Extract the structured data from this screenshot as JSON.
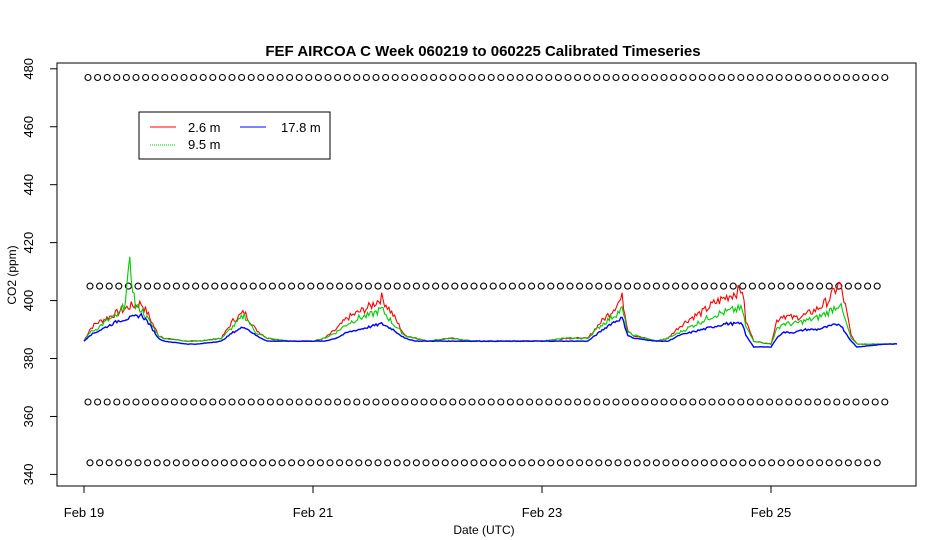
{
  "chart_data": {
    "type": "line",
    "title": "FEF AIRCOA C  Week 060219 to 060225  Calibrated Timeseries",
    "xlabel": "Date (UTC)",
    "ylabel": "CO2 (ppm)",
    "x_range_days_feb": [
      18.9,
      26.2
    ],
    "ylim": [
      336,
      482
    ],
    "x_ticks": [
      {
        "label": "Feb 19",
        "day": 19
      },
      {
        "label": "Feb 21",
        "day": 21
      },
      {
        "label": "Feb 23",
        "day": 23
      },
      {
        "label": "Feb 25",
        "day": 25
      }
    ],
    "y_ticks": [
      340,
      360,
      380,
      400,
      420,
      440,
      460,
      480
    ],
    "grid": false,
    "legend": {
      "position": "top-left"
    },
    "series": [
      {
        "name": "2.6 m",
        "color": "#ff0000",
        "points": [
          [
            19.0,
            386
          ],
          [
            19.05,
            390
          ],
          [
            19.1,
            392
          ],
          [
            19.2,
            394
          ],
          [
            19.3,
            396
          ],
          [
            19.4,
            398
          ],
          [
            19.5,
            399
          ],
          [
            19.55,
            396
          ],
          [
            19.6,
            392
          ],
          [
            19.65,
            388
          ],
          [
            19.7,
            387
          ],
          [
            19.9,
            386
          ],
          [
            20.0,
            386
          ],
          [
            20.2,
            387
          ],
          [
            20.3,
            393
          ],
          [
            20.4,
            396
          ],
          [
            20.5,
            390
          ],
          [
            20.6,
            387
          ],
          [
            20.8,
            386
          ],
          [
            21.0,
            386
          ],
          [
            21.1,
            387
          ],
          [
            21.2,
            390
          ],
          [
            21.3,
            394
          ],
          [
            21.4,
            396
          ],
          [
            21.5,
            398
          ],
          [
            21.6,
            401
          ],
          [
            21.7,
            395
          ],
          [
            21.8,
            388
          ],
          [
            21.9,
            387
          ],
          [
            22.0,
            386
          ],
          [
            22.2,
            387
          ],
          [
            22.4,
            386
          ],
          [
            22.6,
            386
          ],
          [
            22.8,
            386
          ],
          [
            23.0,
            386
          ],
          [
            23.2,
            387
          ],
          [
            23.4,
            387
          ],
          [
            23.5,
            392
          ],
          [
            23.6,
            396
          ],
          [
            23.7,
            401
          ],
          [
            23.75,
            390
          ],
          [
            23.8,
            388
          ],
          [
            24.0,
            386
          ],
          [
            24.1,
            387
          ],
          [
            24.2,
            391
          ],
          [
            24.3,
            394
          ],
          [
            24.4,
            396
          ],
          [
            24.5,
            399
          ],
          [
            24.6,
            401
          ],
          [
            24.7,
            403
          ],
          [
            24.75,
            404
          ],
          [
            24.78,
            393
          ],
          [
            24.85,
            386
          ],
          [
            25.0,
            385
          ],
          [
            25.05,
            393
          ],
          [
            25.1,
            395
          ],
          [
            25.2,
            394
          ],
          [
            25.3,
            395
          ],
          [
            25.4,
            397
          ],
          [
            25.5,
            400
          ],
          [
            25.6,
            406
          ],
          [
            25.65,
            398
          ],
          [
            25.7,
            388
          ],
          [
            25.75,
            385
          ],
          [
            26.0,
            385
          ],
          [
            26.1,
            385
          ]
        ]
      },
      {
        "name": "9.5 m",
        "color": "#00cc00",
        "points": [
          [
            19.0,
            386
          ],
          [
            19.05,
            389
          ],
          [
            19.1,
            390
          ],
          [
            19.2,
            393
          ],
          [
            19.3,
            395
          ],
          [
            19.35,
            398
          ],
          [
            19.4,
            412
          ],
          [
            19.45,
            398
          ],
          [
            19.5,
            397
          ],
          [
            19.55,
            394
          ],
          [
            19.6,
            391
          ],
          [
            19.65,
            388
          ],
          [
            19.7,
            387
          ],
          [
            19.9,
            386
          ],
          [
            20.0,
            386
          ],
          [
            20.2,
            387
          ],
          [
            20.3,
            391
          ],
          [
            20.4,
            395
          ],
          [
            20.5,
            389
          ],
          [
            20.6,
            387
          ],
          [
            20.8,
            386
          ],
          [
            21.0,
            386
          ],
          [
            21.1,
            387
          ],
          [
            21.2,
            389
          ],
          [
            21.3,
            392
          ],
          [
            21.4,
            394
          ],
          [
            21.5,
            395
          ],
          [
            21.6,
            397
          ],
          [
            21.7,
            392
          ],
          [
            21.8,
            388
          ],
          [
            21.9,
            387
          ],
          [
            22.0,
            386
          ],
          [
            22.2,
            387
          ],
          [
            22.4,
            386
          ],
          [
            22.6,
            386
          ],
          [
            22.8,
            386
          ],
          [
            23.0,
            386
          ],
          [
            23.2,
            387
          ],
          [
            23.4,
            387
          ],
          [
            23.5,
            391
          ],
          [
            23.6,
            394
          ],
          [
            23.7,
            397
          ],
          [
            23.75,
            389
          ],
          [
            23.8,
            388
          ],
          [
            24.0,
            386
          ],
          [
            24.1,
            387
          ],
          [
            24.2,
            389
          ],
          [
            24.3,
            391
          ],
          [
            24.4,
            393
          ],
          [
            24.5,
            395
          ],
          [
            24.6,
            396
          ],
          [
            24.7,
            397
          ],
          [
            24.75,
            397
          ],
          [
            24.78,
            391
          ],
          [
            24.85,
            386
          ],
          [
            25.0,
            385
          ],
          [
            25.05,
            390
          ],
          [
            25.1,
            392
          ],
          [
            25.2,
            392
          ],
          [
            25.3,
            393
          ],
          [
            25.4,
            394
          ],
          [
            25.5,
            396
          ],
          [
            25.6,
            399
          ],
          [
            25.65,
            393
          ],
          [
            25.7,
            387
          ],
          [
            25.75,
            385
          ],
          [
            26.0,
            385
          ],
          [
            26.1,
            385
          ]
        ]
      },
      {
        "name": "17.8 m",
        "color": "#0000ff",
        "points": [
          [
            19.0,
            386
          ],
          [
            19.05,
            388
          ],
          [
            19.1,
            389
          ],
          [
            19.2,
            391
          ],
          [
            19.3,
            393
          ],
          [
            19.4,
            394
          ],
          [
            19.5,
            395
          ],
          [
            19.55,
            393
          ],
          [
            19.6,
            390
          ],
          [
            19.65,
            387
          ],
          [
            19.7,
            386
          ],
          [
            19.9,
            385
          ],
          [
            20.0,
            385
          ],
          [
            20.2,
            386
          ],
          [
            20.3,
            389
          ],
          [
            20.4,
            391
          ],
          [
            20.5,
            388
          ],
          [
            20.6,
            386
          ],
          [
            20.8,
            386
          ],
          [
            21.0,
            386
          ],
          [
            21.1,
            386
          ],
          [
            21.2,
            387
          ],
          [
            21.3,
            389
          ],
          [
            21.4,
            390
          ],
          [
            21.5,
            391
          ],
          [
            21.6,
            392
          ],
          [
            21.7,
            390
          ],
          [
            21.8,
            387
          ],
          [
            21.9,
            386
          ],
          [
            22.0,
            386
          ],
          [
            22.2,
            386
          ],
          [
            22.4,
            386
          ],
          [
            22.6,
            386
          ],
          [
            22.8,
            386
          ],
          [
            23.0,
            386
          ],
          [
            23.2,
            386
          ],
          [
            23.4,
            386
          ],
          [
            23.5,
            389
          ],
          [
            23.6,
            392
          ],
          [
            23.7,
            394
          ],
          [
            23.75,
            388
          ],
          [
            23.8,
            387
          ],
          [
            24.0,
            386
          ],
          [
            24.1,
            386
          ],
          [
            24.2,
            388
          ],
          [
            24.3,
            389
          ],
          [
            24.4,
            390
          ],
          [
            24.5,
            391
          ],
          [
            24.6,
            392
          ],
          [
            24.7,
            392
          ],
          [
            24.75,
            392
          ],
          [
            24.78,
            388
          ],
          [
            24.85,
            384
          ],
          [
            25.0,
            384
          ],
          [
            25.05,
            387
          ],
          [
            25.1,
            389
          ],
          [
            25.2,
            389
          ],
          [
            25.3,
            390
          ],
          [
            25.4,
            390
          ],
          [
            25.5,
            391
          ],
          [
            25.6,
            392
          ],
          [
            25.65,
            389
          ],
          [
            25.7,
            386
          ],
          [
            25.75,
            384
          ],
          [
            26.0,
            385
          ],
          [
            26.1,
            385
          ]
        ]
      }
    ],
    "calibration_levels": [
      {
        "value": 477,
        "marker": "o"
      },
      {
        "value": 405,
        "marker": "o"
      },
      {
        "value": 365,
        "marker": "o"
      },
      {
        "value": 344,
        "marker": "o"
      }
    ]
  }
}
